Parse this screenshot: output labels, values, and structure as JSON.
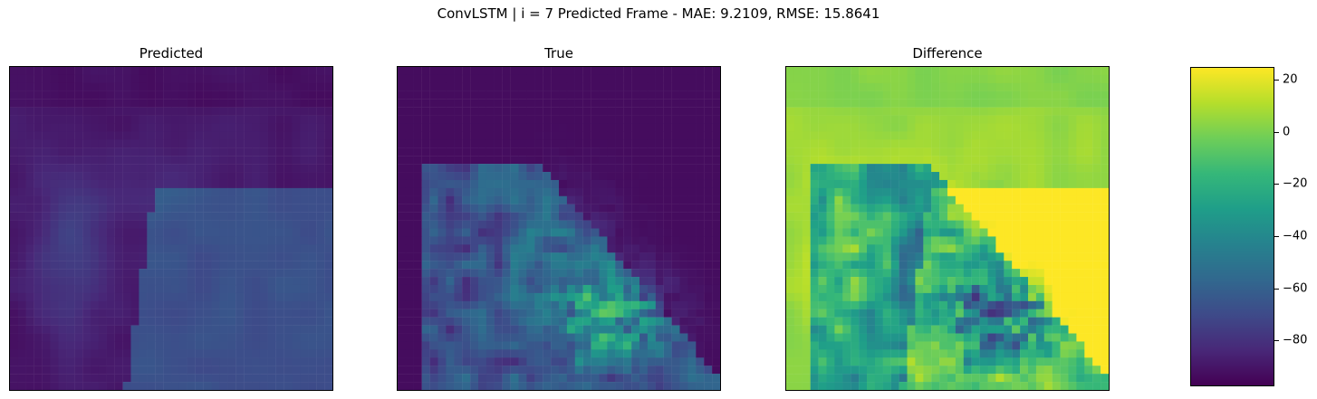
{
  "chart_data": [
    {
      "type": "heatmap",
      "suptitle": "ConvLSTM | i = 7 Predicted Frame - MAE: 9.2109, RMSE: 15.8641",
      "panels": [
        {
          "id": "predicted",
          "title": "Predicted"
        },
        {
          "id": "true",
          "title": "True"
        },
        {
          "id": "difference",
          "title": "Difference"
        }
      ],
      "colormap": "viridis",
      "grid_size": [
        40,
        40
      ],
      "colorbar": {
        "range": [
          -97,
          25
        ],
        "ticks": [
          20,
          0,
          -20,
          -40,
          -60,
          -80
        ],
        "tick_labels": [
          "20",
          "0",
          "−20",
          "−40",
          "−60",
          "−80"
        ]
      },
      "grid": false,
      "axes_ticks": false
    }
  ]
}
